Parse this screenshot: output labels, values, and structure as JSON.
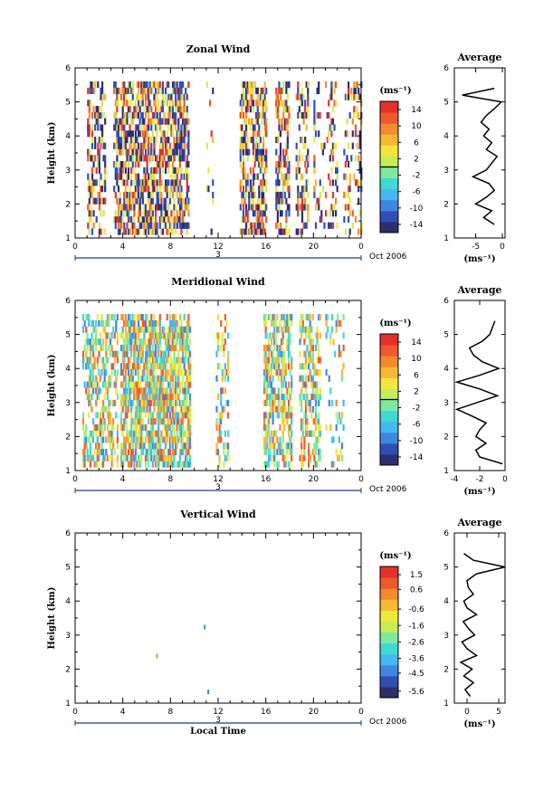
{
  "chart_data": [
    {
      "type": "heatmap",
      "title": "Zonal Wind",
      "ylabel": "Height (km)",
      "ylim": [
        1,
        6
      ],
      "yticks": [
        "1",
        "2",
        "3",
        "4",
        "5",
        "6"
      ],
      "xlim": [
        0,
        24
      ],
      "xticks": [
        "0",
        "4",
        "8",
        "12",
        "16",
        "20",
        "0"
      ],
      "date_marker": "3",
      "date_label": "Oct 2006",
      "colorbar_unit": "(ms⁻¹)",
      "colorbar_ticks": [
        "14",
        "10",
        "6",
        "2",
        "-2",
        "-6",
        "-10",
        "-14"
      ],
      "colorbar_range": [
        -16,
        16
      ],
      "zero_line_value": 0,
      "profile": {
        "title": "Average",
        "xlabel": "(ms⁻¹)",
        "xticks": [
          "-5",
          "0"
        ],
        "xlim": [
          -9,
          0.5
        ],
        "ylim": [
          1,
          6
        ],
        "yticks": [
          "1",
          "2",
          "3",
          "4",
          "5",
          "6"
        ],
        "heights": [
          1.4,
          1.6,
          1.8,
          2.0,
          2.2,
          2.4,
          2.6,
          2.8,
          3.0,
          3.2,
          3.4,
          3.6,
          3.8,
          4.0,
          4.2,
          4.4,
          4.6,
          4.8,
          5.0,
          5.2,
          5.4
        ],
        "values": [
          -1.5,
          -3.5,
          -2.0,
          -5.0,
          -3.0,
          -1.5,
          -2.5,
          -5.5,
          -3.0,
          -2.0,
          -1.0,
          -3.0,
          -2.0,
          -3.5,
          -2.5,
          -4.0,
          -3.0,
          -1.5,
          -0.2,
          -7.5,
          -1.5
        ]
      }
    },
    {
      "type": "heatmap",
      "title": "Meridional Wind",
      "ylabel": "Height (km)",
      "ylim": [
        1,
        6
      ],
      "yticks": [
        "1",
        "2",
        "3",
        "4",
        "5",
        "6"
      ],
      "xlim": [
        0,
        24
      ],
      "xticks": [
        "0",
        "4",
        "8",
        "12",
        "16",
        "20",
        "0"
      ],
      "date_marker": "3",
      "date_label": "Oct 2006",
      "colorbar_unit": "(ms⁻¹)",
      "colorbar_ticks": [
        "14",
        "10",
        "6",
        "2",
        "-2",
        "-6",
        "-10",
        "-14"
      ],
      "colorbar_range": [
        -16,
        16
      ],
      "zero_line_value": 0,
      "profile": {
        "title": "Average",
        "xlabel": "(ms⁻¹)",
        "xticks": [
          "-4",
          "-2",
          "0"
        ],
        "xlim": [
          -4,
          0
        ],
        "ylim": [
          1,
          6
        ],
        "yticks": [
          "1",
          "2",
          "3",
          "4",
          "5",
          "6"
        ],
        "heights": [
          1.2,
          1.4,
          1.6,
          1.8,
          2.0,
          2.2,
          2.4,
          2.6,
          2.8,
          3.0,
          3.2,
          3.4,
          3.6,
          3.8,
          4.0,
          4.2,
          4.4,
          4.6,
          4.8,
          5.0,
          5.2,
          5.4
        ],
        "values": [
          -0.2,
          -2.0,
          -2.3,
          -1.5,
          -2.3,
          -2.0,
          -1.5,
          -2.6,
          -3.8,
          -2.2,
          -0.6,
          -2.0,
          -3.8,
          -2.0,
          -0.5,
          -1.8,
          -2.5,
          -2.8,
          -1.8,
          -1.2,
          -1.0,
          -0.8
        ]
      }
    },
    {
      "type": "heatmap",
      "title": "Vertical Wind",
      "ylabel": "Height (km)",
      "xlabel": "Local Time",
      "ylim": [
        1,
        6
      ],
      "yticks": [
        "1",
        "2",
        "3",
        "4",
        "5",
        "6"
      ],
      "xlim": [
        0,
        24
      ],
      "xticks": [
        "0",
        "4",
        "8",
        "12",
        "16",
        "20",
        "0"
      ],
      "date_marker": "3",
      "date_label": "Oct 2006",
      "colorbar_unit": "(ms⁻¹)",
      "colorbar_ticks": [
        "1.5",
        "0.6",
        "-0.6",
        "-1.6",
        "-2.6",
        "-3.6",
        "-4.5",
        "-5.6"
      ],
      "colorbar_range": [
        -6,
        2
      ],
      "profile": {
        "title": "Average",
        "xlabel": "(ms⁻¹)",
        "xticks": [
          "0",
          "5"
        ],
        "xlim": [
          -2,
          6
        ],
        "ylim": [
          1,
          6
        ],
        "yticks": [
          "1",
          "2",
          "3",
          "4",
          "5",
          "6"
        ],
        "heights": [
          1.2,
          1.4,
          1.6,
          1.8,
          2.0,
          2.2,
          2.4,
          2.6,
          2.8,
          3.0,
          3.2,
          3.4,
          3.6,
          3.8,
          4.0,
          4.2,
          4.4,
          4.6,
          4.8,
          5.0,
          5.2,
          5.4
        ],
        "values": [
          0.5,
          -0.3,
          1.0,
          -0.5,
          0.8,
          -1.0,
          1.5,
          0.0,
          -0.8,
          1.2,
          0.2,
          -0.6,
          1.5,
          0.0,
          -0.5,
          1.0,
          0.2,
          0.0,
          1.5,
          6.0,
          1.0,
          -0.5
        ]
      }
    }
  ],
  "palette": [
    "#2b2f6e",
    "#2f4fb5",
    "#3f86e0",
    "#45b8f0",
    "#3fd8d2",
    "#7fe8a0",
    "#c8ec55",
    "#f2e63c",
    "#f7b832",
    "#f38a2e",
    "#ee5a2a",
    "#e4302a"
  ]
}
